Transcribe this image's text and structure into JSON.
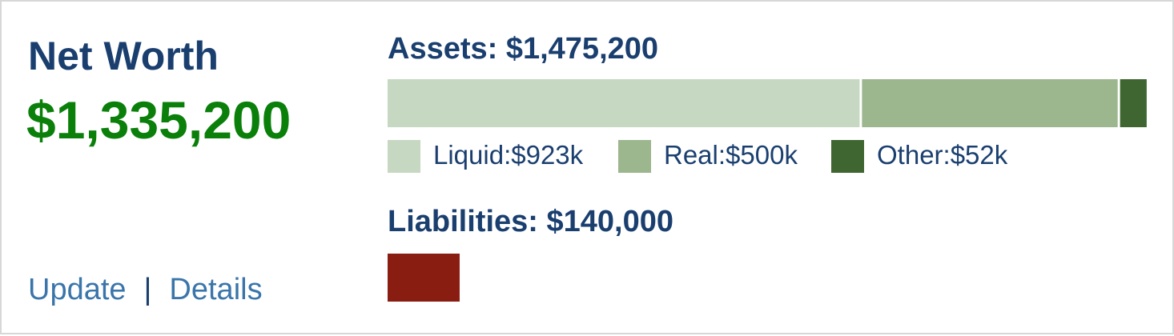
{
  "net_worth": {
    "title": "Net Worth",
    "value": "$1,335,200"
  },
  "links": {
    "update": "Update",
    "separator": "|",
    "details": "Details"
  },
  "colors": {
    "title": "#1a3f6f",
    "net_worth_value": "#0a7f0a",
    "link": "#3a75aa",
    "liquid": "#c6d8c1",
    "real": "#9cb68e",
    "other": "#3f6630",
    "liabilities": "#8a1d12"
  },
  "chart_data": [
    {
      "type": "bar",
      "orientation": "horizontal-stacked",
      "title": "Assets: $1,475,200",
      "total": 1475200,
      "legend_placement": "bottom",
      "segments": [
        {
          "key": "liquid",
          "label": "Liquid:$923k",
          "value": 923000,
          "color": "#c6d8c1"
        },
        {
          "key": "real",
          "label": "Real:$500k",
          "value": 500000,
          "color": "#9cb68e"
        },
        {
          "key": "other",
          "label": "Other:$52k",
          "value": 52000,
          "color": "#3f6630"
        }
      ]
    },
    {
      "type": "bar",
      "orientation": "horizontal",
      "title": "Liabilities: $140,000",
      "total": 140000,
      "scale_max": 1475200,
      "color": "#8a1d12"
    }
  ]
}
